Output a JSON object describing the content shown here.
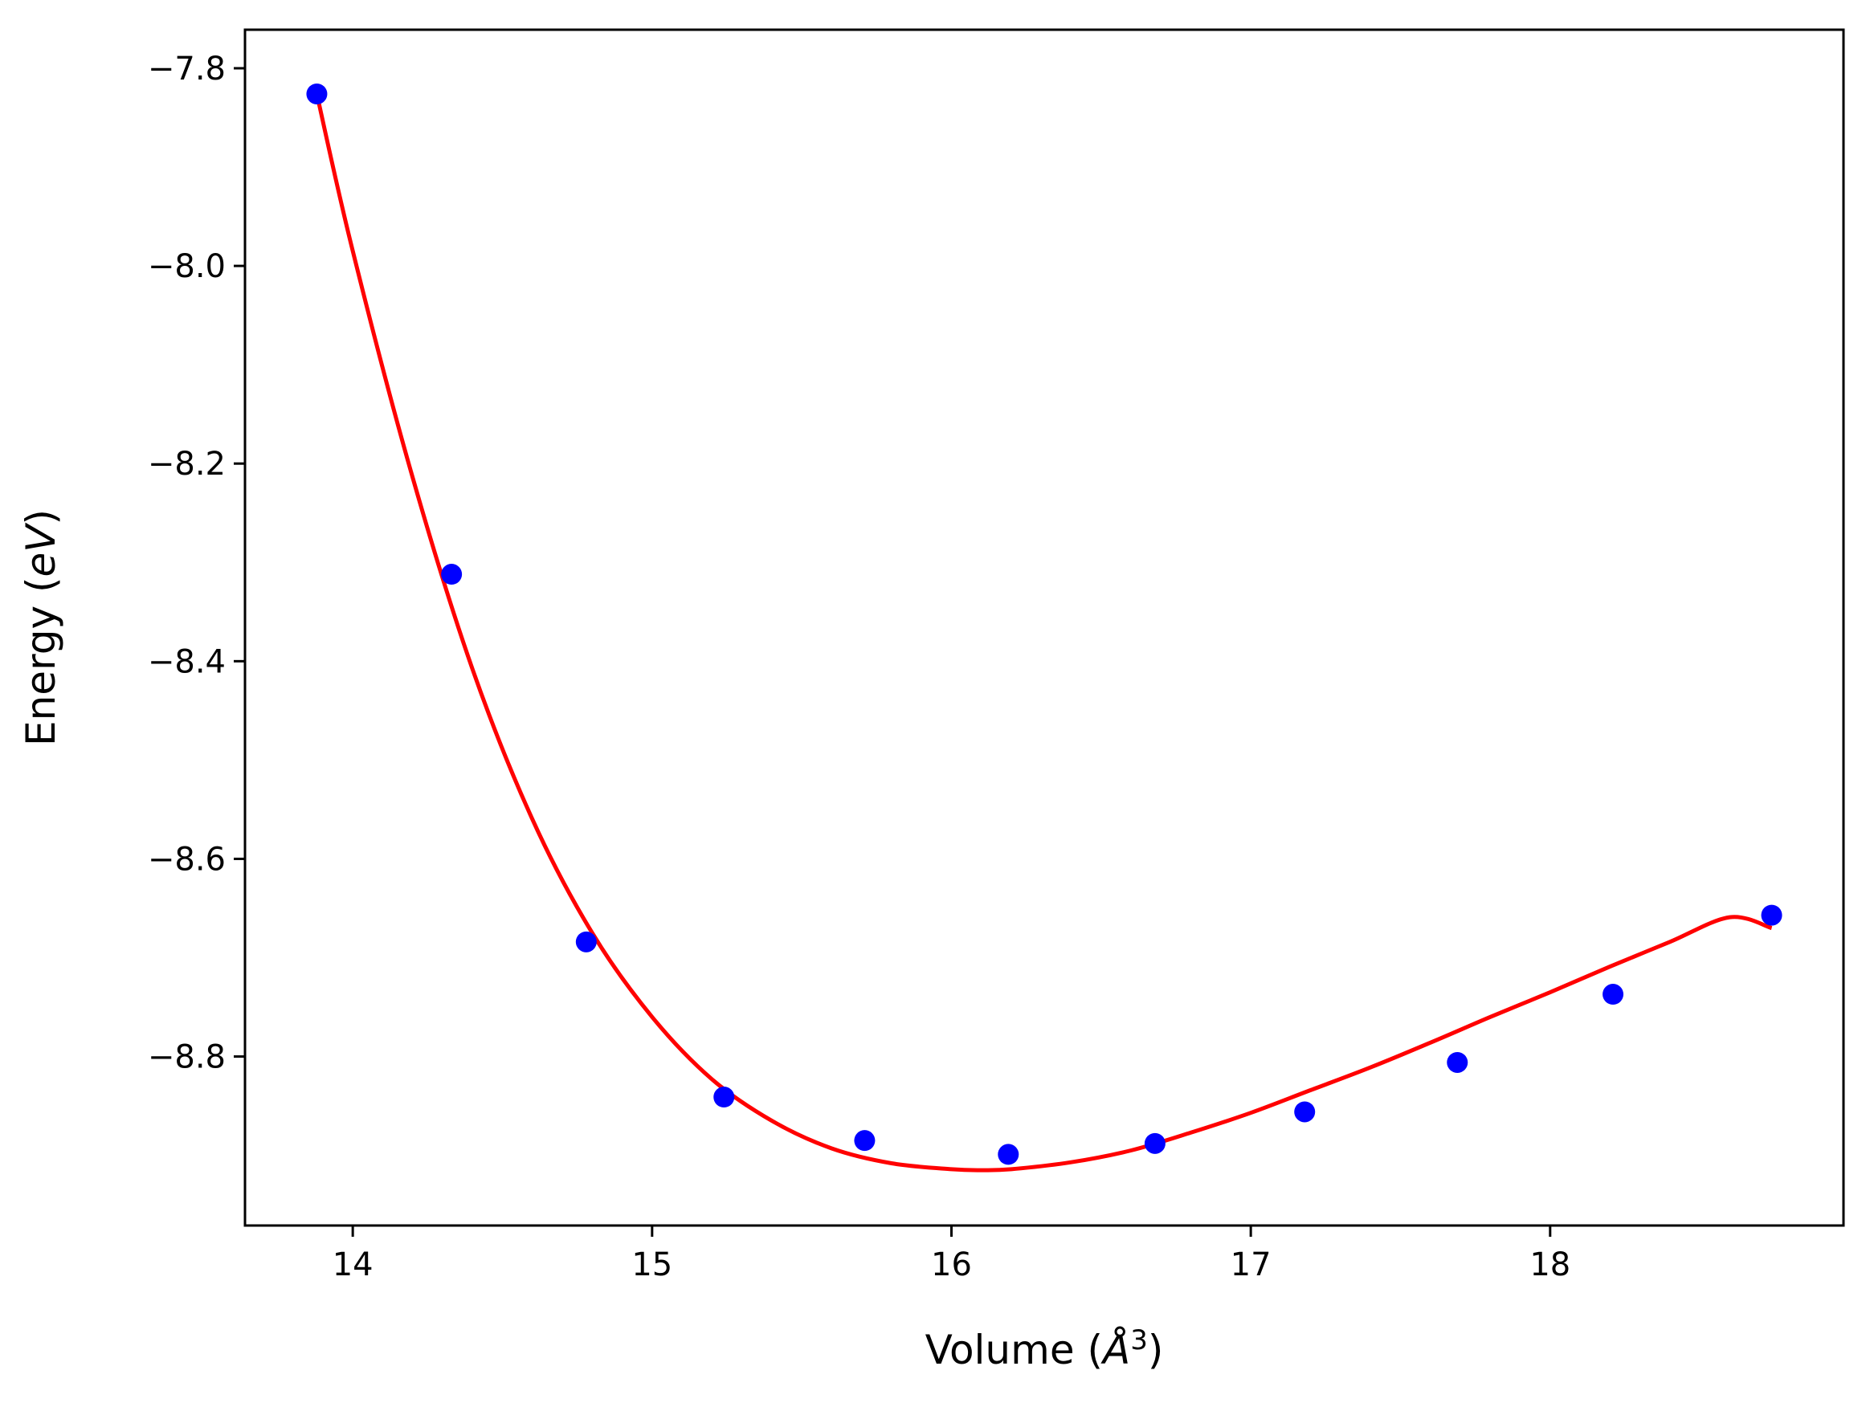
{
  "chart_data": {
    "type": "scatter",
    "title": "",
    "xlabel": {
      "prefix": "Volume (",
      "symbol": "Å",
      "sup": "3",
      "suffix": ")"
    },
    "ylabel": {
      "prefix": "Energy (",
      "symbol": "eV",
      "suffix": ")"
    },
    "xlim": [
      13.64,
      18.98
    ],
    "ylim": [
      -8.971,
      -7.761
    ],
    "xticks": [
      {
        "value": 14,
        "label": "14"
      },
      {
        "value": 15,
        "label": "15"
      },
      {
        "value": 16,
        "label": "16"
      },
      {
        "value": 17,
        "label": "17"
      },
      {
        "value": 18,
        "label": "18"
      }
    ],
    "yticks": [
      {
        "value": -7.8,
        "label": "−7.8"
      },
      {
        "value": -8.0,
        "label": "−8.0"
      },
      {
        "value": -8.2,
        "label": "−8.2"
      },
      {
        "value": -8.4,
        "label": "−8.4"
      },
      {
        "value": -8.6,
        "label": "−8.6"
      },
      {
        "value": -8.8,
        "label": "−8.8"
      }
    ],
    "grid": false,
    "series": [
      {
        "kind": "scatter",
        "color": "#0000ff",
        "points": [
          {
            "x": 13.88,
            "y": -7.826
          },
          {
            "x": 14.33,
            "y": -8.312
          },
          {
            "x": 14.78,
            "y": -8.684
          },
          {
            "x": 15.24,
            "y": -8.841
          },
          {
            "x": 15.71,
            "y": -8.885
          },
          {
            "x": 16.19,
            "y": -8.899
          },
          {
            "x": 16.68,
            "y": -8.888
          },
          {
            "x": 17.18,
            "y": -8.856
          },
          {
            "x": 17.69,
            "y": -8.806
          },
          {
            "x": 18.21,
            "y": -8.737
          },
          {
            "x": 18.74,
            "y": -8.657
          }
        ]
      },
      {
        "kind": "line",
        "color": "#ff0000",
        "points": [
          {
            "x": 13.88,
            "y": -7.826
          },
          {
            "x": 14.0,
            "y": -7.985
          },
          {
            "x": 14.2,
            "y": -8.214
          },
          {
            "x": 14.4,
            "y": -8.408
          },
          {
            "x": 14.6,
            "y": -8.56
          },
          {
            "x": 14.8,
            "y": -8.675
          },
          {
            "x": 15.0,
            "y": -8.76
          },
          {
            "x": 15.2,
            "y": -8.823
          },
          {
            "x": 15.4,
            "y": -8.865
          },
          {
            "x": 15.6,
            "y": -8.893
          },
          {
            "x": 15.8,
            "y": -8.908
          },
          {
            "x": 16.0,
            "y": -8.914
          },
          {
            "x": 16.1,
            "y": -8.915
          },
          {
            "x": 16.2,
            "y": -8.914
          },
          {
            "x": 16.4,
            "y": -8.907
          },
          {
            "x": 16.6,
            "y": -8.895
          },
          {
            "x": 16.8,
            "y": -8.877
          },
          {
            "x": 17.0,
            "y": -8.857
          },
          {
            "x": 17.2,
            "y": -8.834
          },
          {
            "x": 17.4,
            "y": -8.811
          },
          {
            "x": 17.6,
            "y": -8.786
          },
          {
            "x": 17.8,
            "y": -8.76
          },
          {
            "x": 18.0,
            "y": -8.735
          },
          {
            "x": 18.2,
            "y": -8.709
          },
          {
            "x": 18.4,
            "y": -8.684
          },
          {
            "x": 18.6,
            "y": -8.659
          },
          {
            "x": 18.74,
            "y": -8.67
          }
        ]
      }
    ]
  }
}
